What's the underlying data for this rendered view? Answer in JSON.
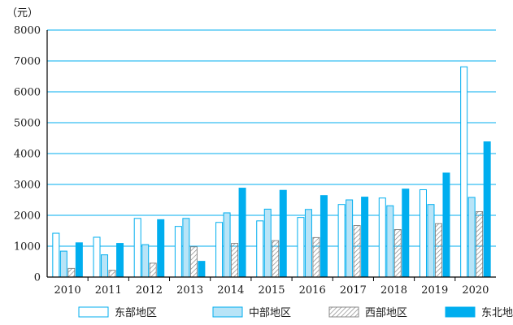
{
  "chart_data": {
    "type": "bar",
    "ylabel": "（元）",
    "ylim": [
      0,
      8000
    ],
    "yticks": [
      0,
      1000,
      2000,
      3000,
      4000,
      5000,
      6000,
      7000,
      8000
    ],
    "grid": "horizontal",
    "legend_position": "bottom",
    "categories": [
      "2010",
      "2011",
      "2012",
      "2013",
      "2014",
      "2015",
      "2016",
      "2017",
      "2018",
      "2019",
      "2020"
    ],
    "series": [
      {
        "name": "东部地区",
        "style": "outline",
        "values": [
          1420,
          1290,
          1900,
          1640,
          1770,
          1820,
          1930,
          2350,
          2560,
          2830,
          6810
        ]
      },
      {
        "name": "中部地区",
        "style": "light-blue",
        "values": [
          840,
          720,
          1050,
          1900,
          2080,
          2200,
          2190,
          2500,
          2310,
          2350,
          2580
        ]
      },
      {
        "name": "西部地区",
        "style": "hatched",
        "values": [
          280,
          220,
          450,
          980,
          1090,
          1180,
          1280,
          1670,
          1540,
          1730,
          2120
        ]
      },
      {
        "name": "东北地区",
        "style": "solid-blue",
        "values": [
          1110,
          1090,
          1860,
          510,
          2880,
          2810,
          2640,
          2590,
          2850,
          3370,
          4380
        ]
      }
    ]
  },
  "colors": {
    "outline": "#00aeef",
    "light": "#b8e4f7",
    "solid": "#00aeef",
    "hatch": "#7f7f7f",
    "axis": "#000000",
    "grid": "#00aeef"
  }
}
